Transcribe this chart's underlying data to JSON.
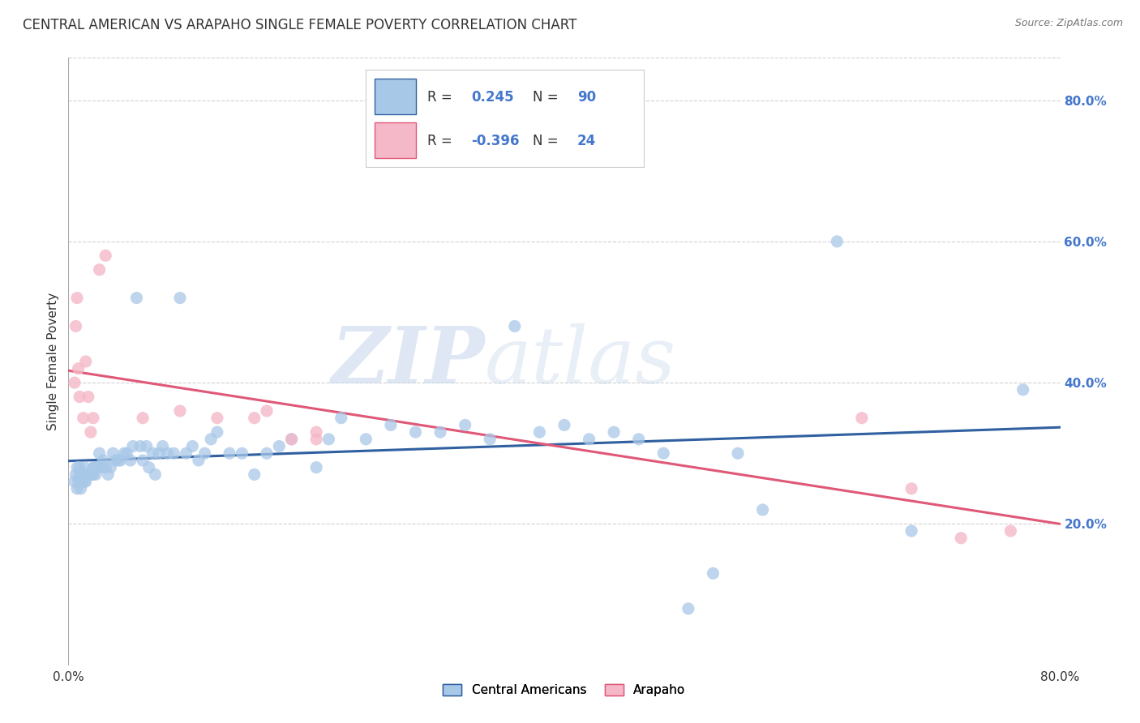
{
  "title": "CENTRAL AMERICAN VS ARAPAHO SINGLE FEMALE POVERTY CORRELATION CHART",
  "source": "Source: ZipAtlas.com",
  "ylabel": "Single Female Poverty",
  "watermark_zip": "ZIP",
  "watermark_atlas": "atlas",
  "blue_R": 0.245,
  "blue_N": 90,
  "pink_R": -0.396,
  "pink_N": 24,
  "blue_color": "#a8c8e8",
  "pink_color": "#f4b8c8",
  "blue_line_color": "#3060a0",
  "pink_line_color": "#e05878",
  "right_axis_color": "#4477cc",
  "legend_label_blue": "Central Americans",
  "legend_label_pink": "Arapaho",
  "xlim": [
    0.0,
    0.8
  ],
  "ylim": [
    0.0,
    0.86
  ],
  "blue_scatter_x": [
    0.005,
    0.006,
    0.007,
    0.007,
    0.008,
    0.009,
    0.009,
    0.01,
    0.01,
    0.01,
    0.011,
    0.012,
    0.012,
    0.013,
    0.013,
    0.014,
    0.014,
    0.015,
    0.015,
    0.016,
    0.017,
    0.018,
    0.019,
    0.02,
    0.02,
    0.021,
    0.022,
    0.023,
    0.024,
    0.025,
    0.027,
    0.028,
    0.03,
    0.032,
    0.034,
    0.036,
    0.038,
    0.04,
    0.042,
    0.045,
    0.047,
    0.05,
    0.052,
    0.055,
    0.058,
    0.06,
    0.063,
    0.065,
    0.068,
    0.07,
    0.073,
    0.076,
    0.08,
    0.085,
    0.09,
    0.095,
    0.1,
    0.105,
    0.11,
    0.115,
    0.12,
    0.13,
    0.14,
    0.15,
    0.16,
    0.17,
    0.18,
    0.2,
    0.21,
    0.22,
    0.24,
    0.26,
    0.28,
    0.3,
    0.32,
    0.34,
    0.36,
    0.38,
    0.4,
    0.42,
    0.44,
    0.46,
    0.48,
    0.5,
    0.52,
    0.54,
    0.56,
    0.62,
    0.68,
    0.77
  ],
  "blue_scatter_y": [
    0.26,
    0.27,
    0.25,
    0.28,
    0.26,
    0.27,
    0.28,
    0.26,
    0.27,
    0.25,
    0.26,
    0.27,
    0.27,
    0.26,
    0.28,
    0.27,
    0.26,
    0.27,
    0.27,
    0.27,
    0.27,
    0.27,
    0.27,
    0.27,
    0.28,
    0.28,
    0.27,
    0.28,
    0.28,
    0.3,
    0.28,
    0.29,
    0.28,
    0.27,
    0.28,
    0.3,
    0.29,
    0.29,
    0.29,
    0.3,
    0.3,
    0.29,
    0.31,
    0.52,
    0.31,
    0.29,
    0.31,
    0.28,
    0.3,
    0.27,
    0.3,
    0.31,
    0.3,
    0.3,
    0.52,
    0.3,
    0.31,
    0.29,
    0.3,
    0.32,
    0.33,
    0.3,
    0.3,
    0.27,
    0.3,
    0.31,
    0.32,
    0.28,
    0.32,
    0.35,
    0.32,
    0.34,
    0.33,
    0.33,
    0.34,
    0.32,
    0.48,
    0.33,
    0.34,
    0.32,
    0.33,
    0.32,
    0.3,
    0.08,
    0.13,
    0.3,
    0.22,
    0.6,
    0.19,
    0.39
  ],
  "pink_scatter_x": [
    0.005,
    0.006,
    0.007,
    0.008,
    0.009,
    0.012,
    0.014,
    0.016,
    0.018,
    0.02,
    0.025,
    0.03,
    0.06,
    0.09,
    0.12,
    0.15,
    0.16,
    0.18,
    0.2,
    0.2,
    0.64,
    0.68,
    0.72,
    0.76
  ],
  "pink_scatter_y": [
    0.4,
    0.48,
    0.52,
    0.42,
    0.38,
    0.35,
    0.43,
    0.38,
    0.33,
    0.35,
    0.56,
    0.58,
    0.35,
    0.36,
    0.35,
    0.35,
    0.36,
    0.32,
    0.32,
    0.33,
    0.35,
    0.25,
    0.18,
    0.19
  ],
  "right_yticks": [
    0.2,
    0.4,
    0.6,
    0.8
  ],
  "right_yticklabels": [
    "20.0%",
    "40.0%",
    "60.0%",
    "80.0%"
  ],
  "grid_color": "#cccccc",
  "background_color": "#ffffff"
}
